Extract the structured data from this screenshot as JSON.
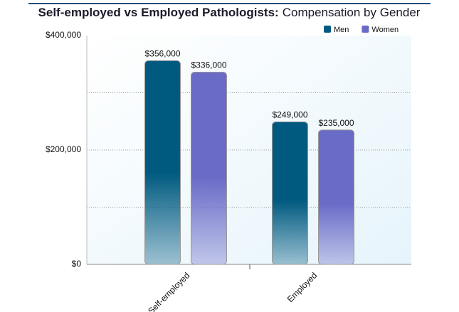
{
  "chart_data": {
    "type": "bar",
    "title": "Self-employed vs Employed Pathologists:",
    "subtitle": "Compensation by Gender",
    "categories": [
      "Self-employed",
      "Employed"
    ],
    "series": [
      {
        "name": "Men",
        "color": "#005a80",
        "values": [
          356000,
          249000
        ],
        "value_labels": [
          "$356,000",
          "$249,000"
        ]
      },
      {
        "name": "Women",
        "color": "#6a6bc7",
        "values": [
          336000,
          235000
        ],
        "value_labels": [
          "$336,000",
          "$235,000"
        ]
      }
    ],
    "ylim": [
      0,
      400000
    ],
    "yticks": [
      {
        "value": 0,
        "label": "$0"
      },
      {
        "value": 200000,
        "label": "$200,000"
      },
      {
        "value": 400000,
        "label": "$400,000"
      }
    ],
    "y_minor_ticks": [
      100000,
      300000
    ],
    "grid": true,
    "legend": "top-right"
  }
}
